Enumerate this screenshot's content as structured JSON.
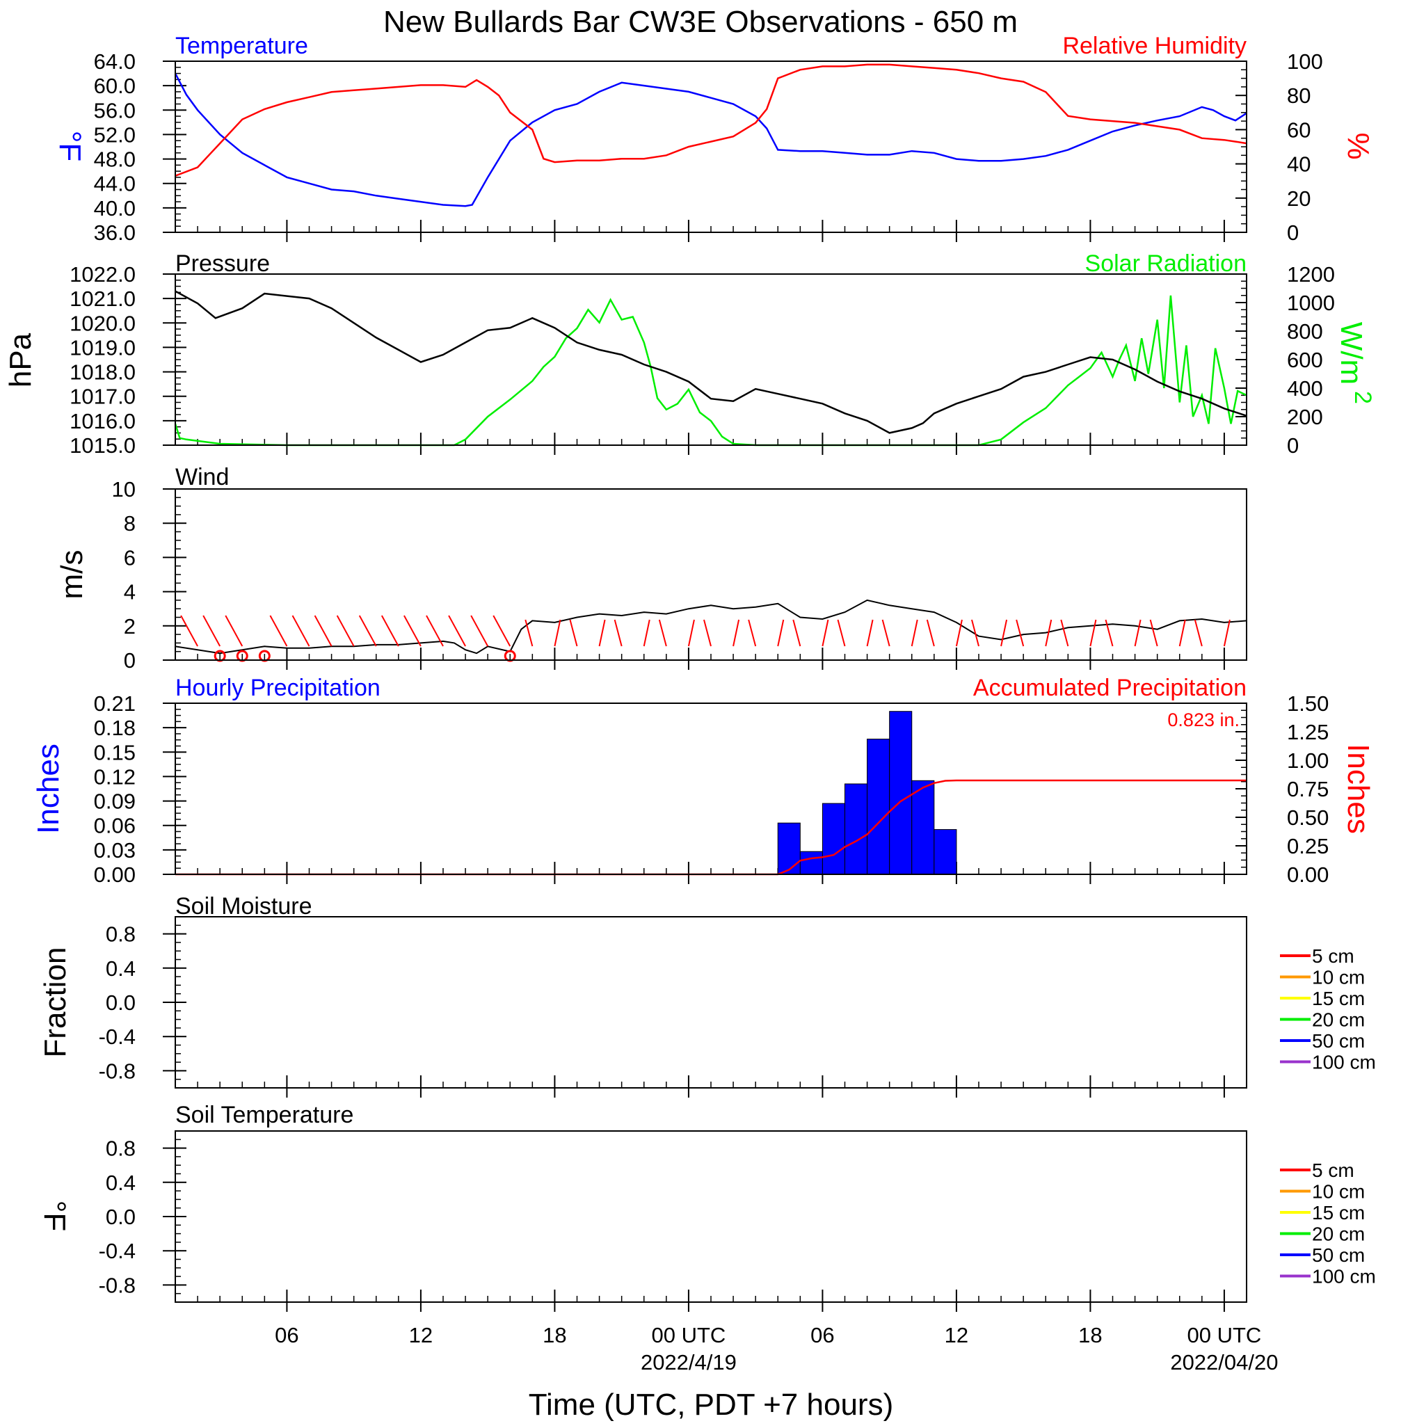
{
  "title": "New Bullards Bar CW3E Observations - 650 m",
  "x_axis": {
    "label": "Time (UTC, PDT +7 hours)",
    "range_hours": [
      0,
      48
    ],
    "ticks": [
      {
        "h": 5,
        "label": "06",
        "date": ""
      },
      {
        "h": 11,
        "label": "12",
        "date": ""
      },
      {
        "h": 17,
        "label": "18",
        "date": ""
      },
      {
        "h": 23,
        "label": "00 UTC",
        "date": "2022/4/19"
      },
      {
        "h": 29,
        "label": "06",
        "date": ""
      },
      {
        "h": 35,
        "label": "12",
        "date": ""
      },
      {
        "h": 41,
        "label": "18",
        "date": ""
      },
      {
        "h": 47,
        "label": "00 UTC",
        "date": "2022/04/20"
      }
    ]
  },
  "colors": {
    "temperature": "#0000ff",
    "humidity": "#ff0000",
    "pressure": "#000000",
    "solar": "#00ee00",
    "wind": "#000000",
    "barb": "#ff0000",
    "hourly_precip": "#0000ff",
    "accum_precip": "#ff0000"
  },
  "chart_data": [
    {
      "type": "line",
      "title_left": "Temperature",
      "title_right": "Relative Humidity",
      "ylabel_left": "°F",
      "ylabel_right": "%",
      "ylim_left": [
        36,
        64
      ],
      "ylim_right": [
        0,
        100
      ],
      "yticks_left": [
        "64.0",
        "60.0",
        "56.0",
        "52.0",
        "48.0",
        "44.0",
        "40.0",
        "36.0"
      ],
      "yticks_right": [
        "100",
        "80",
        "60",
        "40",
        "20",
        "0"
      ],
      "series": [
        {
          "name": "Temperature",
          "axis": "left",
          "x": [
            0,
            0.5,
            1,
            2,
            3,
            4,
            5,
            6,
            7,
            8,
            9,
            10,
            11,
            12,
            13,
            13.3,
            14,
            15,
            16,
            17,
            18,
            19,
            20,
            21,
            22,
            23,
            24,
            25,
            26,
            26.5,
            27,
            28,
            29,
            30,
            31,
            32,
            33,
            34,
            35,
            36,
            37,
            38,
            39,
            40,
            41,
            42,
            43,
            44,
            45,
            46,
            46.5,
            47,
            47.5,
            48
          ],
          "y": [
            62,
            58.5,
            56,
            52,
            49,
            47,
            45,
            44,
            43,
            42.7,
            42,
            41.5,
            41,
            40.5,
            40.3,
            40.5,
            45,
            51,
            54,
            56,
            57,
            59,
            60.5,
            60,
            59.5,
            59,
            58,
            57,
            55,
            53,
            49.5,
            49.3,
            49.3,
            49,
            48.7,
            48.7,
            49.3,
            49,
            48,
            47.7,
            47.7,
            48,
            48.5,
            49.5,
            51,
            52.5,
            53.5,
            54.3,
            55,
            56.5,
            56,
            55,
            54.3,
            55.5
          ]
        },
        {
          "name": "Relative Humidity",
          "axis": "right",
          "x": [
            0,
            1,
            1.5,
            2,
            3,
            4,
            5,
            6,
            7,
            8,
            9,
            10,
            11,
            12,
            13,
            13.5,
            14,
            14.5,
            15,
            16,
            16.5,
            17,
            18,
            19,
            20,
            21,
            22,
            23,
            24,
            25,
            26,
            26.5,
            27,
            28,
            29,
            30,
            31,
            32,
            33,
            34,
            35,
            36,
            37,
            38,
            39,
            39.5,
            40,
            41,
            42,
            43,
            44,
            45,
            46,
            47,
            47.5,
            48
          ],
          "y": [
            33,
            38,
            45,
            52,
            66,
            72,
            76,
            79,
            82,
            83,
            84,
            85,
            86,
            86,
            85,
            89,
            85,
            80,
            70,
            60,
            43,
            41,
            42,
            42,
            43,
            43,
            45,
            50,
            53,
            56,
            64,
            72,
            90,
            95,
            97,
            97,
            98,
            98,
            97,
            96,
            95,
            93,
            90,
            88,
            82,
            75,
            68,
            66,
            65,
            64,
            62,
            60,
            55,
            54,
            53,
            52
          ]
        }
      ]
    },
    {
      "type": "line",
      "title_left": "Pressure",
      "title_right": "Solar Radiation",
      "ylabel_left": "hPa",
      "ylabel_right": "W/m",
      "ylabel_right_sup": "2",
      "ylim_left": [
        1015,
        1022
      ],
      "ylim_right": [
        0,
        1200
      ],
      "yticks_left": [
        "1022.0",
        "1021.0",
        "1020.0",
        "1019.0",
        "1018.0",
        "1017.0",
        "1016.0",
        "1015.0"
      ],
      "yticks_right": [
        "1200",
        "1000",
        "800",
        "600",
        "400",
        "200",
        "0"
      ],
      "series": [
        {
          "name": "Pressure",
          "axis": "left",
          "x": [
            0,
            1,
            1.8,
            3,
            4,
            5,
            6,
            7,
            8,
            9,
            10,
            11,
            12,
            13,
            14,
            15,
            16,
            17,
            18,
            19,
            20,
            21,
            22,
            23,
            24,
            25,
            26,
            27,
            28,
            29,
            30,
            31,
            32,
            33,
            33.5,
            34,
            35,
            36,
            37,
            38,
            39,
            40,
            41,
            42,
            43,
            44,
            45,
            46,
            47,
            48
          ],
          "y": [
            1021.3,
            1020.8,
            1020.2,
            1020.6,
            1021.2,
            1021.1,
            1021.0,
            1020.6,
            1020.0,
            1019.4,
            1018.9,
            1018.4,
            1018.7,
            1019.2,
            1019.7,
            1019.8,
            1020.2,
            1019.8,
            1019.2,
            1018.9,
            1018.7,
            1018.3,
            1018.0,
            1017.6,
            1016.9,
            1016.8,
            1017.3,
            1017.1,
            1016.9,
            1016.7,
            1016.3,
            1016.0,
            1015.5,
            1015.7,
            1015.9,
            1016.3,
            1016.7,
            1017.0,
            1017.3,
            1017.8,
            1018.0,
            1018.3,
            1018.6,
            1018.5,
            1018.1,
            1017.6,
            1017.2,
            1016.9,
            1016.5,
            1016.2
          ]
        },
        {
          "name": "Solar Radiation",
          "axis": "right",
          "x": [
            0,
            0.2,
            0.5,
            2,
            5,
            10,
            12,
            12.5,
            13,
            14,
            15,
            16,
            16.5,
            17,
            17.5,
            18,
            18.5,
            19,
            19.5,
            20,
            20.5,
            21,
            21.3,
            21.6,
            22,
            22.5,
            23,
            23.5,
            24,
            24.5,
            25,
            26,
            30,
            35,
            36,
            37,
            38,
            39,
            40,
            40.5,
            41,
            41.5,
            42,
            42.3,
            42.6,
            43,
            43.3,
            43.6,
            44,
            44.3,
            44.6,
            45,
            45.3,
            45.6,
            46,
            46.3,
            46.6,
            47,
            47.3,
            47.6,
            48
          ],
          "y": [
            150,
            50,
            40,
            10,
            0,
            0,
            0,
            0,
            40,
            200,
            320,
            450,
            550,
            620,
            750,
            820,
            950,
            860,
            1020,
            880,
            900,
            720,
            550,
            330,
            250,
            290,
            390,
            230,
            170,
            60,
            10,
            0,
            0,
            0,
            0,
            40,
            160,
            260,
            420,
            480,
            540,
            650,
            480,
            600,
            700,
            450,
            750,
            500,
            880,
            400,
            1050,
            300,
            700,
            200,
            350,
            150,
            680,
            400,
            150,
            380,
            350
          ]
        }
      ]
    },
    {
      "type": "line",
      "title_left": "Wind",
      "ylabel_left": "m/s",
      "ylim_left": [
        0,
        10
      ],
      "yticks_left": [
        "10",
        "8",
        "6",
        "4",
        "2",
        "0"
      ],
      "series": [
        {
          "name": "Wind",
          "axis": "left",
          "x": [
            0,
            1,
            2,
            3,
            4,
            5,
            6,
            7,
            8,
            9,
            10,
            11,
            12,
            12.5,
            13,
            13.5,
            14,
            15,
            15.5,
            16,
            17,
            18,
            19,
            20,
            21,
            22,
            23,
            24,
            25,
            26,
            27,
            28,
            29,
            30,
            31,
            32,
            33,
            34,
            35,
            36,
            37,
            38,
            39,
            40,
            41,
            42,
            43,
            44,
            45,
            46,
            47,
            48
          ],
          "y": [
            0.8,
            0.6,
            0.4,
            0.6,
            0.8,
            0.7,
            0.7,
            0.8,
            0.8,
            0.9,
            0.9,
            1.0,
            1.1,
            1.0,
            0.6,
            0.4,
            0.8,
            0.5,
            1.8,
            2.3,
            2.2,
            2.5,
            2.7,
            2.6,
            2.8,
            2.7,
            3.0,
            3.2,
            3.0,
            3.1,
            3.3,
            2.5,
            2.4,
            2.8,
            3.5,
            3.2,
            3.0,
            2.8,
            2.2,
            1.4,
            1.2,
            1.5,
            1.6,
            1.9,
            2.0,
            2.1,
            2.0,
            1.8,
            2.3,
            2.4,
            2.2,
            2.3
          ]
        }
      ],
      "barb_hours": [
        1,
        2,
        3,
        5,
        6,
        7,
        8,
        9,
        10,
        11,
        12,
        13,
        14,
        15,
        16,
        17,
        18,
        19,
        20,
        21,
        22,
        23,
        24,
        25,
        26,
        27,
        28,
        29,
        30,
        31,
        32,
        33,
        34,
        35,
        36,
        37,
        38,
        39,
        40,
        41,
        42,
        43,
        44,
        45,
        46,
        47
      ],
      "calm_hours": [
        2,
        3,
        4,
        15
      ]
    },
    {
      "type": "bar",
      "title_left": "Hourly Precipitation",
      "title_right": "Accumulated Precipitation",
      "annotation": "0.823 in.",
      "ylabel_left": "Inches",
      "ylabel_right": "Inches",
      "ylim_left": [
        0,
        0.21
      ],
      "ylim_right": [
        0,
        1.5
      ],
      "yticks_left": [
        "0.21",
        "0.18",
        "0.15",
        "0.12",
        "0.09",
        "0.06",
        "0.03",
        "0.00"
      ],
      "yticks_right": [
        "1.50",
        "1.25",
        "1.00",
        "0.75",
        "0.50",
        "0.25",
        "0.00"
      ],
      "bars": {
        "start_hours": [
          27,
          28,
          29,
          30,
          31,
          32,
          33,
          34
        ],
        "values": [
          0.063,
          0.028,
          0.087,
          0.111,
          0.166,
          0.2,
          0.115,
          0.055
        ]
      },
      "accum_series": {
        "name": "Accumulated Precipitation",
        "axis": "right",
        "x": [
          0,
          27,
          27.5,
          28,
          28.5,
          29,
          29.5,
          30,
          30.5,
          31,
          31.5,
          32,
          32.5,
          33,
          33.5,
          34,
          34.5,
          35,
          48
        ],
        "y": [
          0,
          0,
          0.04,
          0.12,
          0.14,
          0.15,
          0.17,
          0.24,
          0.29,
          0.35,
          0.45,
          0.55,
          0.64,
          0.7,
          0.76,
          0.8,
          0.82,
          0.823,
          0.823
        ]
      }
    },
    {
      "type": "line",
      "title_left": "Soil Moisture",
      "ylabel_left": "Fraction",
      "ylim_left": [
        -1,
        1
      ],
      "yticks_left": [
        "0.8",
        "0.4",
        "0.0",
        "-0.4",
        "-0.8"
      ],
      "yticks_values": [
        0.8,
        0.4,
        0.0,
        -0.4,
        -0.8
      ],
      "legend": [
        {
          "label": "5 cm",
          "color": "#ff0000"
        },
        {
          "label": "10 cm",
          "color": "#ff9900"
        },
        {
          "label": "15 cm",
          "color": "#ffff00"
        },
        {
          "label": "20 cm",
          "color": "#00ee00"
        },
        {
          "label": "50 cm",
          "color": "#0000ff"
        },
        {
          "label": "100 cm",
          "color": "#9933cc"
        }
      ]
    },
    {
      "type": "line",
      "title_left": "Soil Temperature",
      "ylabel_left": "°F",
      "ylim_left": [
        -1,
        1
      ],
      "yticks_left": [
        "0.8",
        "0.4",
        "0.0",
        "-0.4",
        "-0.8"
      ],
      "yticks_values": [
        0.8,
        0.4,
        0.0,
        -0.4,
        -0.8
      ],
      "legend": [
        {
          "label": "5 cm",
          "color": "#ff0000"
        },
        {
          "label": "10 cm",
          "color": "#ff9900"
        },
        {
          "label": "15 cm",
          "color": "#ffff00"
        },
        {
          "label": "20 cm",
          "color": "#00ee00"
        },
        {
          "label": "50 cm",
          "color": "#0000ff"
        },
        {
          "label": "100 cm",
          "color": "#9933cc"
        }
      ]
    }
  ]
}
